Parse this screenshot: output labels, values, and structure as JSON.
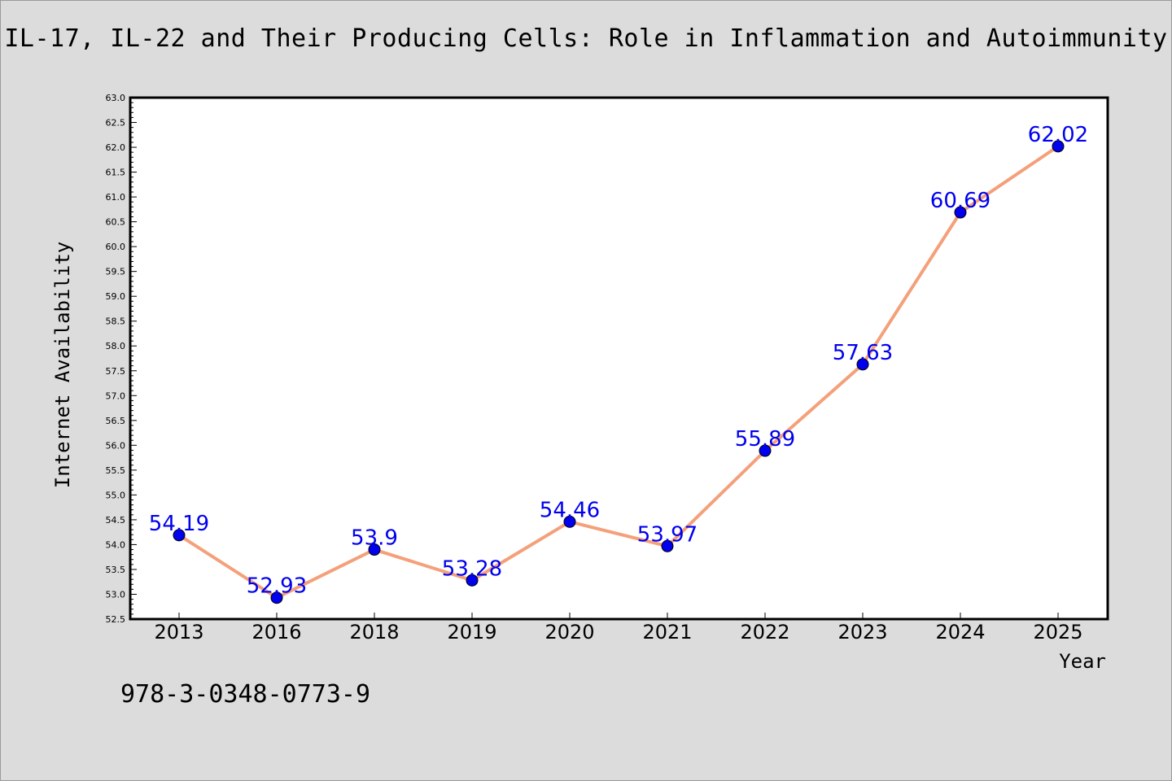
{
  "title": "IL-17, IL-22 and Their Producing Cells: Role in Inflammation and Autoimmunity",
  "isbn": "978-3-0348-0773-9",
  "chart_data": {
    "type": "line",
    "categories": [
      "2013",
      "2016",
      "2018",
      "2019",
      "2020",
      "2021",
      "2022",
      "2023",
      "2024",
      "2025"
    ],
    "series": [
      {
        "values": [
          54.19,
          52.93,
          53.9,
          53.28,
          54.46,
          53.97,
          55.89,
          57.63,
          60.69,
          62.02
        ],
        "labels": [
          "54.19",
          "52.93",
          "53.9",
          "53.28",
          "54.46",
          "53.97",
          "55.89",
          "57.63",
          "60.69",
          "62.02"
        ],
        "line_color": "#f4a07a",
        "marker_color": "#0000ee"
      }
    ],
    "xlabel": "Year",
    "ylabel": "Internet Availability",
    "ylim": [
      52.5,
      63.0
    ],
    "ytick_step": 0.5,
    "grid": false,
    "legend": "none",
    "colors": {
      "background": "#dcdcdc",
      "plot_background": "#ffffff",
      "label": "#0000ee"
    }
  }
}
